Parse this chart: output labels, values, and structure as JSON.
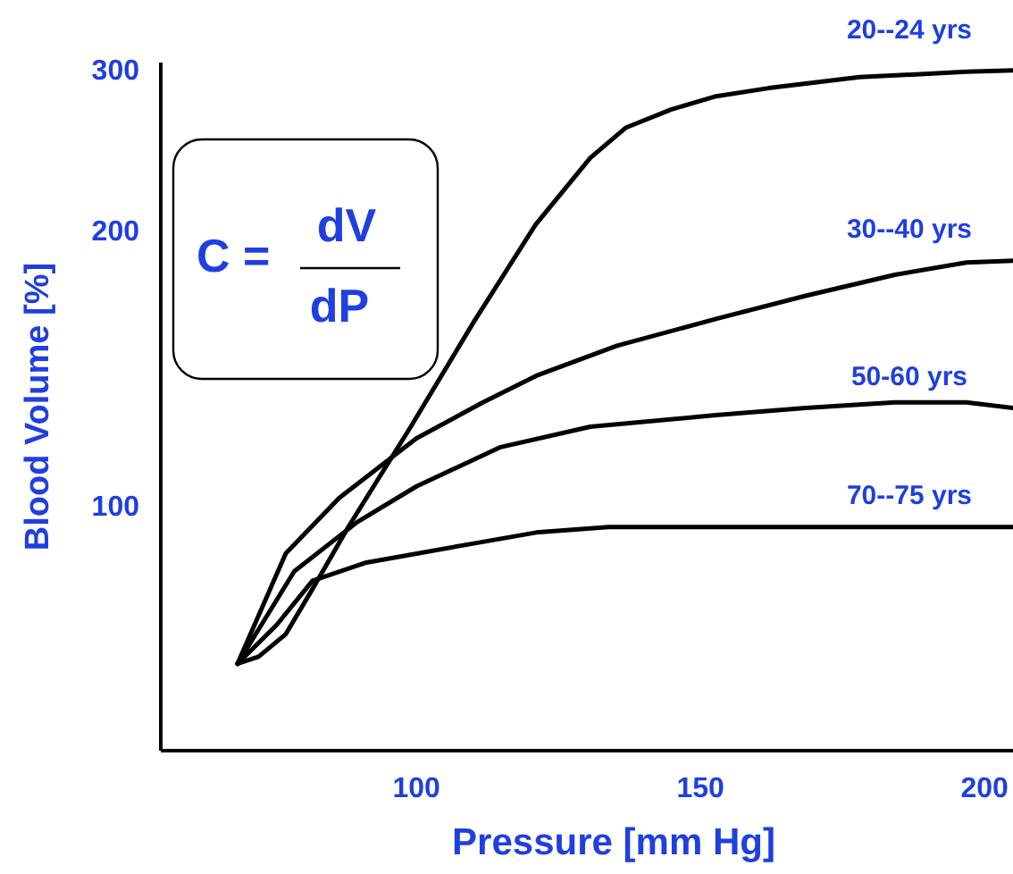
{
  "chart_data": {
    "type": "line",
    "xlabel": "Pressure [mm Hg]",
    "ylabel": "Blood Volume [%]",
    "log": "y",
    "xlim": [
      55,
      205
    ],
    "ylim": [
      54,
      305
    ],
    "xticks": [
      100,
      150,
      200
    ],
    "yticks": [
      100,
      200,
      300
    ],
    "grid": false,
    "marker": "none",
    "line_style": "solid",
    "annotations": [
      "C =",
      "dV",
      "dP"
    ],
    "series": [
      {
        "name": "20--24 yrs",
        "color": "#000000",
        "x": [
          68.5,
          72.2,
          77,
          81.7,
          88,
          99,
          110,
          121,
          130.6,
          136.9,
          144.8,
          152.5,
          162,
          178,
          196.8,
          205
        ],
        "values": [
          67.2,
          68.4,
          72.4,
          81.1,
          94.8,
          122,
          158.5,
          203,
          240,
          259,
          271,
          280,
          286,
          294,
          298,
          299
        ]
      },
      {
        "name": "30--40 yrs",
        "color": "#000000",
        "x": [
          68.5,
          77,
          86.4,
          100,
          111.7,
          121.1,
          135.3,
          152.7,
          168.5,
          184.2,
          196.8,
          205
        ],
        "values": [
          67.2,
          88.7,
          102,
          118.5,
          129.7,
          138.7,
          149.6,
          160,
          169.6,
          178.8,
          184.4,
          185.3
        ]
      },
      {
        "name": "50-60 yrs",
        "color": "#000000",
        "x": [
          68.5,
          78.5,
          89.6,
          100,
          114.8,
          130.6,
          152.7,
          168.5,
          184.2,
          196.8,
          205
        ],
        "values": [
          67.2,
          84.8,
          96,
          105,
          115.9,
          122,
          125.6,
          127.9,
          129.7,
          129.7,
          127.9
        ]
      },
      {
        "name": "70--75 yrs",
        "color": "#000000",
        "x": [
          68.5,
          75.4,
          81.7,
          91.2,
          108.5,
          121.1,
          133.8,
          152.7,
          205
        ],
        "values": [
          67.2,
          74.1,
          82.8,
          86.7,
          90.6,
          93.5,
          94.8,
          94.8,
          94.8
        ]
      }
    ]
  }
}
